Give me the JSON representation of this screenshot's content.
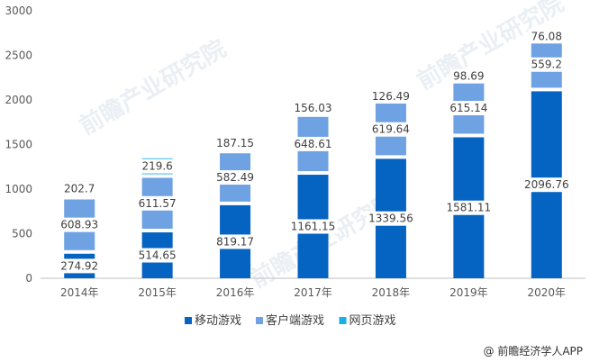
{
  "chart_data": {
    "type": "bar",
    "stacked": true,
    "categories": [
      "2014年",
      "2015年",
      "2016年",
      "2017年",
      "2018年",
      "2019年",
      "2020年"
    ],
    "series": [
      {
        "name": "移动游戏",
        "color": "#0563c1",
        "values": [
          274.92,
          514.65,
          819.17,
          1161.15,
          1339.56,
          1581.11,
          2096.76
        ]
      },
      {
        "name": "客户端游戏",
        "color": "#6ea2e3",
        "values": [
          608.93,
          611.57,
          582.49,
          648.61,
          619.64,
          615.14,
          559.2
        ]
      },
      {
        "name": "网页游戏",
        "color": "#17b0e8",
        "values": [
          202.7,
          219.6,
          187.15,
          156.03,
          126.49,
          98.69,
          76.08
        ]
      }
    ],
    "ylim": [
      0,
      3000
    ],
    "yticks": [
      0,
      500,
      1000,
      1500,
      2000,
      2500,
      3000
    ],
    "legend_position": "bottom",
    "grid": false
  },
  "watermark": "前瞻产业研究院",
  "brand": "@ 前瞻经济学人APP"
}
